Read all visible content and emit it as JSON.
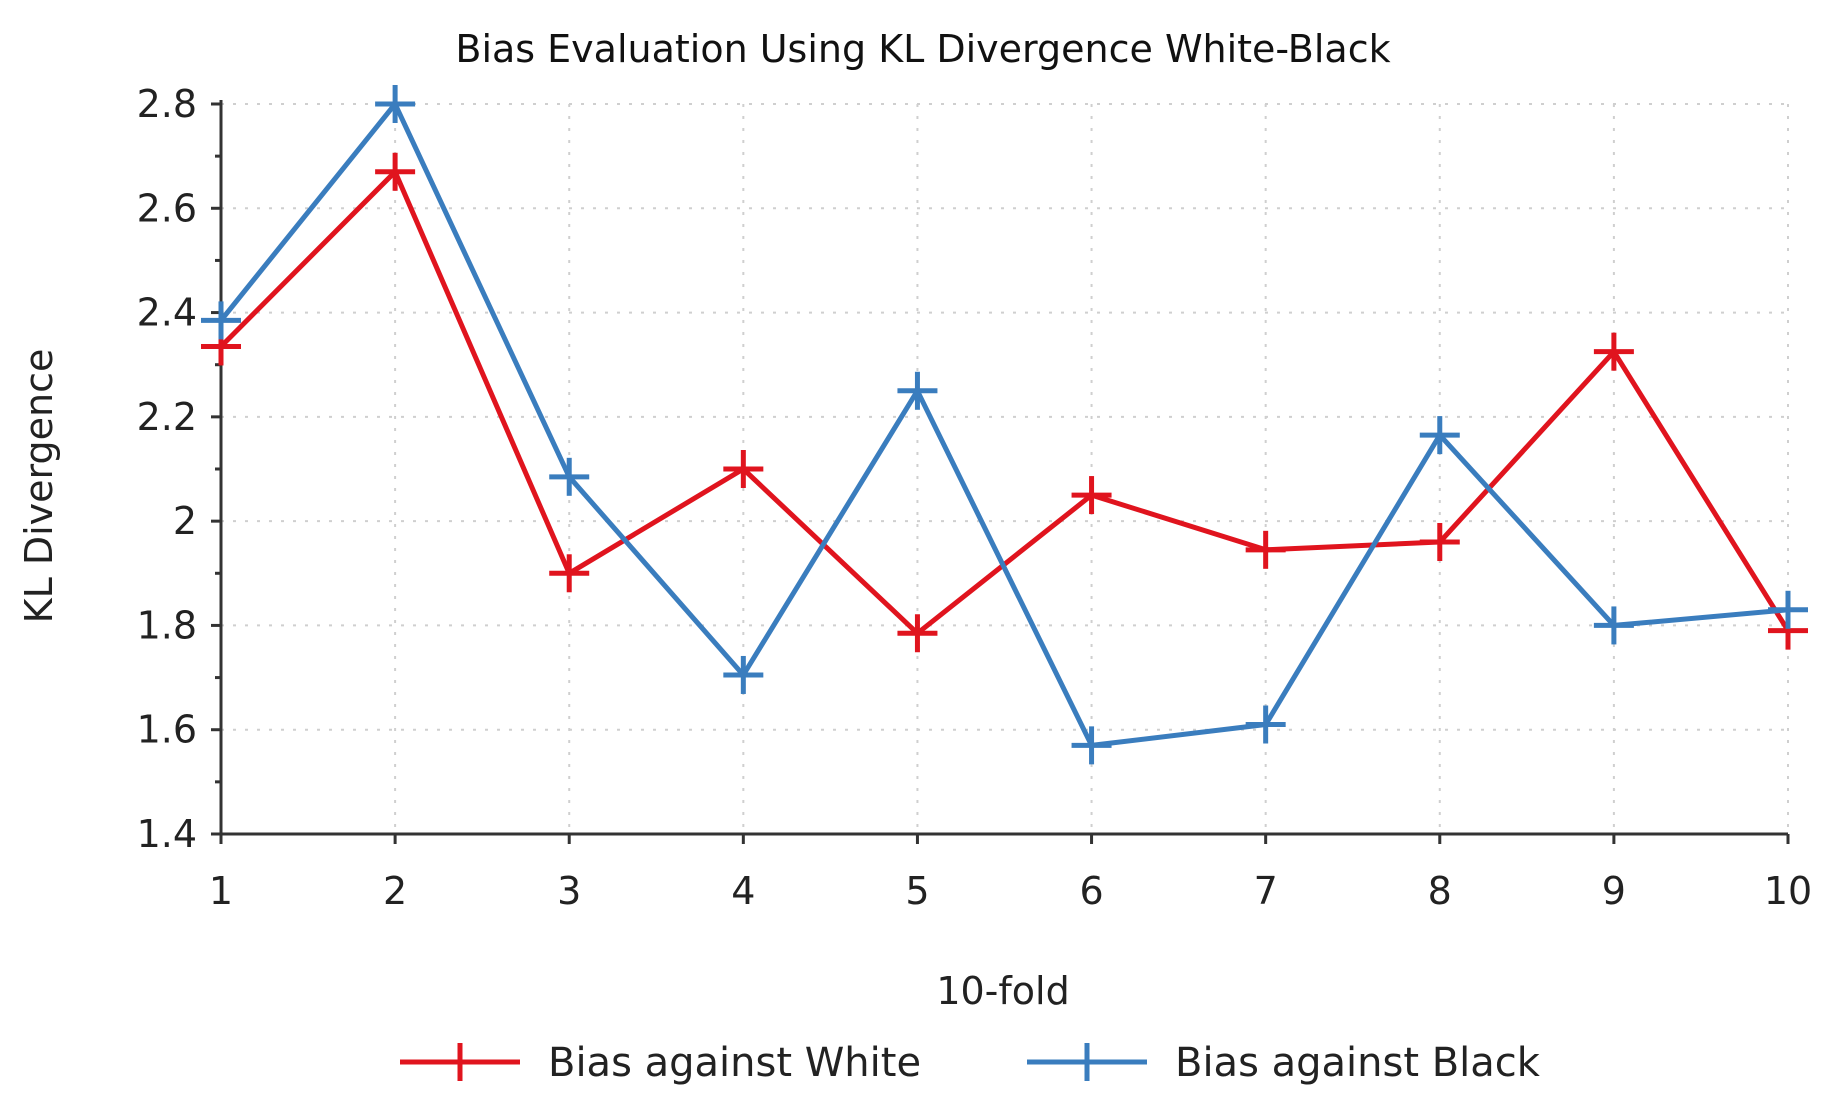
{
  "chart_data": {
    "type": "line",
    "title": "Bias Evaluation Using KL Divergence White-Black",
    "xlabel": "10-fold",
    "ylabel": "KL Divergence",
    "x": [
      1,
      2,
      3,
      4,
      5,
      6,
      7,
      8,
      9,
      10
    ],
    "x_tick_labels": [
      "1",
      "2",
      "3",
      "4",
      "5",
      "6",
      "7",
      "8",
      "9",
      "10"
    ],
    "y_ticks": [
      1.4,
      1.6,
      1.8,
      2,
      2.2,
      2.4,
      2.6,
      2.8
    ],
    "y_tick_labels": [
      "1.4",
      "1.6",
      "1.8",
      "2",
      "2.2",
      "2.4",
      "2.6",
      "2.8"
    ],
    "xlim": [
      1,
      10
    ],
    "ylim": [
      1.4,
      2.8
    ],
    "grid": true,
    "legend_position": "bottom",
    "series": [
      {
        "name": "Bias against White",
        "color": "#e0141e",
        "marker": "plus",
        "values": [
          2.335,
          2.67,
          1.9,
          2.1,
          1.785,
          2.05,
          1.945,
          1.96,
          2.325,
          1.79
        ]
      },
      {
        "name": "Bias against Black",
        "color": "#3a7dbe",
        "marker": "plus",
        "values": [
          2.385,
          2.8,
          2.085,
          1.705,
          2.25,
          1.57,
          1.61,
          2.165,
          1.8,
          1.83
        ]
      }
    ]
  }
}
